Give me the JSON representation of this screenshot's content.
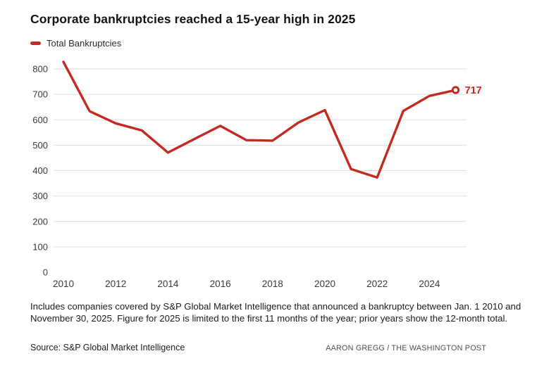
{
  "header": {
    "title": "Corporate bankruptcies reached a 15-year high in 2025"
  },
  "legend": {
    "label": "Total Bankruptcies"
  },
  "chart_data": {
    "type": "line",
    "title": "Corporate bankruptcies reached a 15-year high in 2025",
    "x": [
      2010,
      2011,
      2012,
      2013,
      2014,
      2015,
      2016,
      2017,
      2018,
      2019,
      2020,
      2021,
      2022,
      2023,
      2024,
      2025
    ],
    "series": [
      {
        "name": "Total Bankruptcies",
        "color": "#c32b20",
        "values": [
          828,
          634,
          586,
          558,
          471,
          524,
          576,
          520,
          518,
          590,
          638,
          406,
          373,
          635,
          694,
          717
        ]
      }
    ],
    "end_point_label": "717",
    "x_tick_labels": [
      "2010",
      "2012",
      "2014",
      "2016",
      "2018",
      "2020",
      "2022",
      "2024"
    ],
    "y_ticks": [
      0,
      100,
      200,
      300,
      400,
      500,
      600,
      700,
      800
    ],
    "ylim": [
      0,
      850
    ],
    "grid": "horizontal-only, no zero baseline",
    "legend_position": "top-left",
    "marker": "open-circle-on-last-point"
  },
  "colors": {
    "line": "#c32b20",
    "gridline": "#dddddd",
    "axis_text": "#3a3a3a",
    "end_label": "#c32b20"
  },
  "footer": {
    "note": "Includes companies covered by S&P Global Market Intelligence that announced a bankruptcy between Jan. 1 2010 and November 30, 2025. Figure for 2025 is limited to the first 11 months of the year; prior years show the 12-month total.",
    "source": "Source: S&P Global Market Intelligence",
    "credit": "AARON GREGG / THE WASHINGTON POST"
  }
}
